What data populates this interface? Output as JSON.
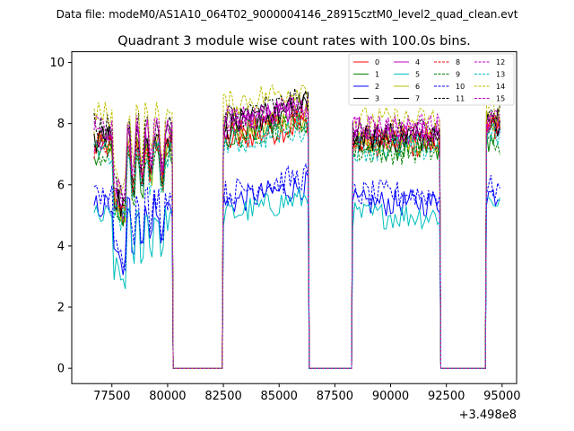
{
  "suptitle": "Data file: modeM0/AS1A10_064T02_9000004146_28915cztM0_level2_quad_clean.evt",
  "chart_data": {
    "type": "line",
    "title": "Quadrant 3 module wise count rates with 100.0s bins.",
    "xlabel": "",
    "ylabel": "",
    "x_offset_label": "+3.498e8",
    "xlim": [
      75700,
      95650
    ],
    "ylim": [
      -0.5,
      10.35
    ],
    "xticks": [
      77500,
      80000,
      82500,
      85000,
      87500,
      90000,
      92500,
      95000
    ],
    "xtick_labels": [
      "77500",
      "80000",
      "82500",
      "85000",
      "87500",
      "90000",
      "92500",
      "95000"
    ],
    "yticks": [
      0,
      2,
      4,
      6,
      8,
      10
    ],
    "ytick_labels": [
      "0",
      "2",
      "4",
      "6",
      "8",
      "10"
    ],
    "bin_seconds": 100,
    "segments": [
      {
        "name": "on1",
        "start": 76700,
        "end": 80200,
        "state": "on"
      },
      {
        "name": "gap1",
        "start": 80200,
        "end": 82500,
        "state": "off"
      },
      {
        "name": "on2",
        "start": 82500,
        "end": 86300,
        "state": "on"
      },
      {
        "name": "gap2",
        "start": 86300,
        "end": 88300,
        "state": "off"
      },
      {
        "name": "on3",
        "start": 88300,
        "end": 92200,
        "state": "on"
      },
      {
        "name": "gap3",
        "start": 92200,
        "end": 94300,
        "state": "off"
      },
      {
        "name": "on4",
        "start": 94300,
        "end": 94950,
        "state": "on"
      }
    ],
    "series": [
      {
        "name": "0",
        "color": "#ff0000",
        "dashed": false,
        "levels": [
          7.2,
          7.4,
          7.3,
          7.8
        ]
      },
      {
        "name": "1",
        "color": "#008000",
        "dashed": false,
        "levels": [
          7.1,
          7.6,
          7.2,
          7.5
        ]
      },
      {
        "name": "2",
        "color": "#0000ff",
        "dashed": false,
        "levels": [
          5.3,
          5.4,
          5.4,
          5.7
        ]
      },
      {
        "name": "3",
        "color": "#000000",
        "dashed": false,
        "levels": [
          7.6,
          8.0,
          7.6,
          8.1
        ]
      },
      {
        "name": "4",
        "color": "#bf00bf",
        "dashed": false,
        "levels": [
          7.5,
          7.9,
          7.6,
          7.9
        ]
      },
      {
        "name": "5",
        "color": "#00bfbf",
        "dashed": false,
        "levels": [
          4.9,
          5.0,
          5.0,
          5.5
        ]
      },
      {
        "name": "6",
        "color": "#bfbf00",
        "dashed": false,
        "levels": [
          7.4,
          7.7,
          7.4,
          8.0
        ]
      },
      {
        "name": "7",
        "color": "#000000",
        "dashed": false,
        "levels": [
          7.5,
          7.9,
          7.5,
          8.0
        ]
      },
      {
        "name": "8",
        "color": "#ff0000",
        "dashed": true,
        "levels": [
          7.3,
          7.6,
          7.5,
          7.9
        ]
      },
      {
        "name": "9",
        "color": "#008000",
        "dashed": true,
        "levels": [
          7.0,
          7.5,
          7.1,
          7.4
        ]
      },
      {
        "name": "10",
        "color": "#0000ff",
        "dashed": true,
        "levels": [
          5.6,
          5.7,
          5.7,
          5.9
        ]
      },
      {
        "name": "11",
        "color": "#000000",
        "dashed": true,
        "levels": [
          7.9,
          8.2,
          7.7,
          8.3
        ]
      },
      {
        "name": "12",
        "color": "#bf00bf",
        "dashed": true,
        "levels": [
          7.9,
          8.0,
          7.9,
          8.1
        ]
      },
      {
        "name": "13",
        "color": "#00bfbf",
        "dashed": true,
        "levels": [
          7.0,
          7.3,
          7.2,
          7.6
        ]
      },
      {
        "name": "14",
        "color": "#bfbf00",
        "dashed": true,
        "levels": [
          8.3,
          8.6,
          8.1,
          8.5
        ]
      },
      {
        "name": "15",
        "color": "#bf00bf",
        "dashed": true,
        "levels": [
          7.8,
          8.1,
          7.8,
          8.2
        ]
      }
    ]
  }
}
